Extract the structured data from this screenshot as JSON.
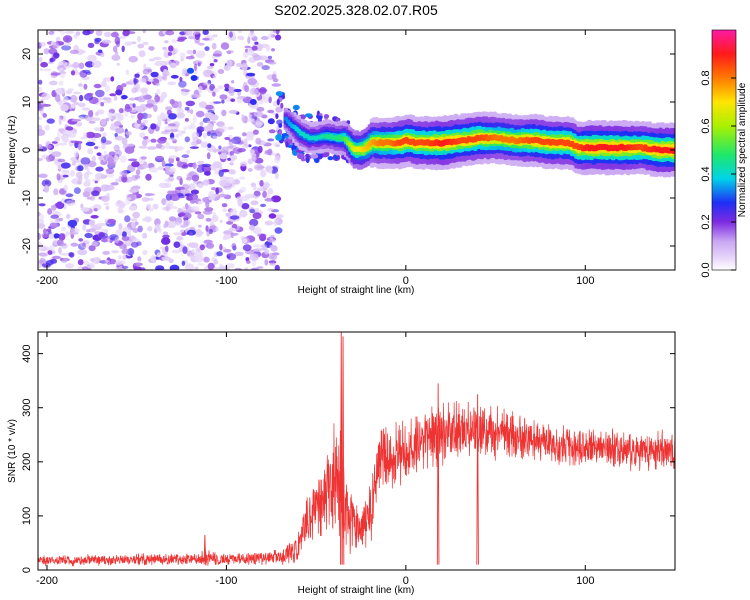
{
  "title": "S202.2025.328.02.07.R05",
  "chart_data": [
    {
      "type": "heatmap",
      "title": "S202.2025.328.02.07.R05",
      "xlabel": "Height of straight line (km)",
      "ylabel": "Frequency (Hz)",
      "xlim": [
        -205,
        150
      ],
      "ylim": [
        -25,
        25
      ],
      "xticks": [
        -200,
        -100,
        0,
        100
      ],
      "yticks": [
        -20,
        -10,
        0,
        10,
        20
      ],
      "colorbar": {
        "label": "Normalized spectral amplitude",
        "range": [
          0,
          1
        ],
        "ticks": [
          "0.0",
          "0.2",
          "0.4",
          "0.6",
          "0.8"
        ],
        "tick_values": [
          0.0,
          0.2,
          0.4,
          0.6,
          0.8
        ],
        "colormap": [
          "#ffffff",
          "#c9a6f2",
          "#7d2be0",
          "#1f2ef5",
          "#00d3e8",
          "#1ee86a",
          "#aaf000",
          "#ffe400",
          "#ff7a00",
          "#ff1a1a",
          "#ff1aa6"
        ]
      },
      "noise_region_x": [
        -205,
        -70
      ],
      "ridge": {
        "x": [
          -70,
          -64,
          -60,
          -55,
          -50,
          -45,
          -40,
          -35,
          -30,
          -25,
          -20,
          -15,
          -10,
          -5,
          0,
          5,
          10,
          20,
          30,
          40,
          50,
          60,
          70,
          80,
          90,
          95,
          100,
          110,
          120,
          130,
          140,
          150
        ],
        "freq": [
          7,
          5,
          3.5,
          2.5,
          2.5,
          3,
          2.5,
          2.5,
          0,
          0,
          1.5,
          1.5,
          1.5,
          1.5,
          2,
          1.5,
          1.5,
          1.5,
          2,
          2.5,
          2.5,
          2,
          2,
          1.5,
          1.5,
          0.5,
          0.5,
          0.5,
          0.5,
          0.5,
          0,
          0
        ],
        "amplitude": [
          0.35,
          0.4,
          0.45,
          0.45,
          0.45,
          0.5,
          0.5,
          0.55,
          0.7,
          0.75,
          0.8,
          0.85,
          0.85,
          0.9,
          0.9,
          0.9,
          0.9,
          0.95,
          0.9,
          0.9,
          0.85,
          0.85,
          0.9,
          0.9,
          0.9,
          0.9,
          0.95,
          0.95,
          0.95,
          0.9,
          0.95,
          0.95
        ]
      }
    },
    {
      "type": "line",
      "xlabel": "Height of straight line (km)",
      "ylabel": "SNR (10 * v/v)",
      "xlim": [
        -205,
        150
      ],
      "ylim": [
        0,
        440
      ],
      "xticks": [
        -200,
        -100,
        0,
        100
      ],
      "yticks": [
        0,
        100,
        200,
        300,
        400
      ],
      "line_color": "#ee3333",
      "series": [
        {
          "name": "SNR",
          "envelope_x": [
            -205,
            -120,
            -110,
            -100,
            -80,
            -70,
            -60,
            -55,
            -50,
            -45,
            -42,
            -40,
            -38,
            -35,
            -32,
            -30,
            -25,
            -20,
            -15,
            -10,
            -5,
            0,
            10,
            20,
            30,
            40,
            50,
            60,
            70,
            80,
            90,
            100,
            110,
            120,
            130,
            140,
            150
          ],
          "mean": [
            18,
            20,
            22,
            20,
            22,
            25,
            40,
            90,
            120,
            140,
            150,
            160,
            180,
            130,
            100,
            90,
            70,
            100,
            200,
            210,
            215,
            220,
            240,
            250,
            255,
            258,
            255,
            248,
            240,
            235,
            230,
            225,
            225,
            222,
            220,
            220,
            218
          ],
          "amplitude": [
            10,
            10,
            14,
            10,
            12,
            14,
            25,
            45,
            60,
            70,
            80,
            100,
            120,
            80,
            60,
            55,
            45,
            55,
            60,
            55,
            55,
            55,
            55,
            55,
            50,
            48,
            45,
            42,
            38,
            36,
            35,
            35,
            35,
            35,
            35,
            35,
            35
          ],
          "spikes": [
            {
              "x": -112,
              "y": 65
            },
            {
              "x": -36,
              "y": 440
            },
            {
              "x": -35,
              "y": 432
            },
            {
              "x": 18,
              "y": 345
            },
            {
              "x": 40,
              "y": 325
            }
          ]
        }
      ]
    }
  ]
}
